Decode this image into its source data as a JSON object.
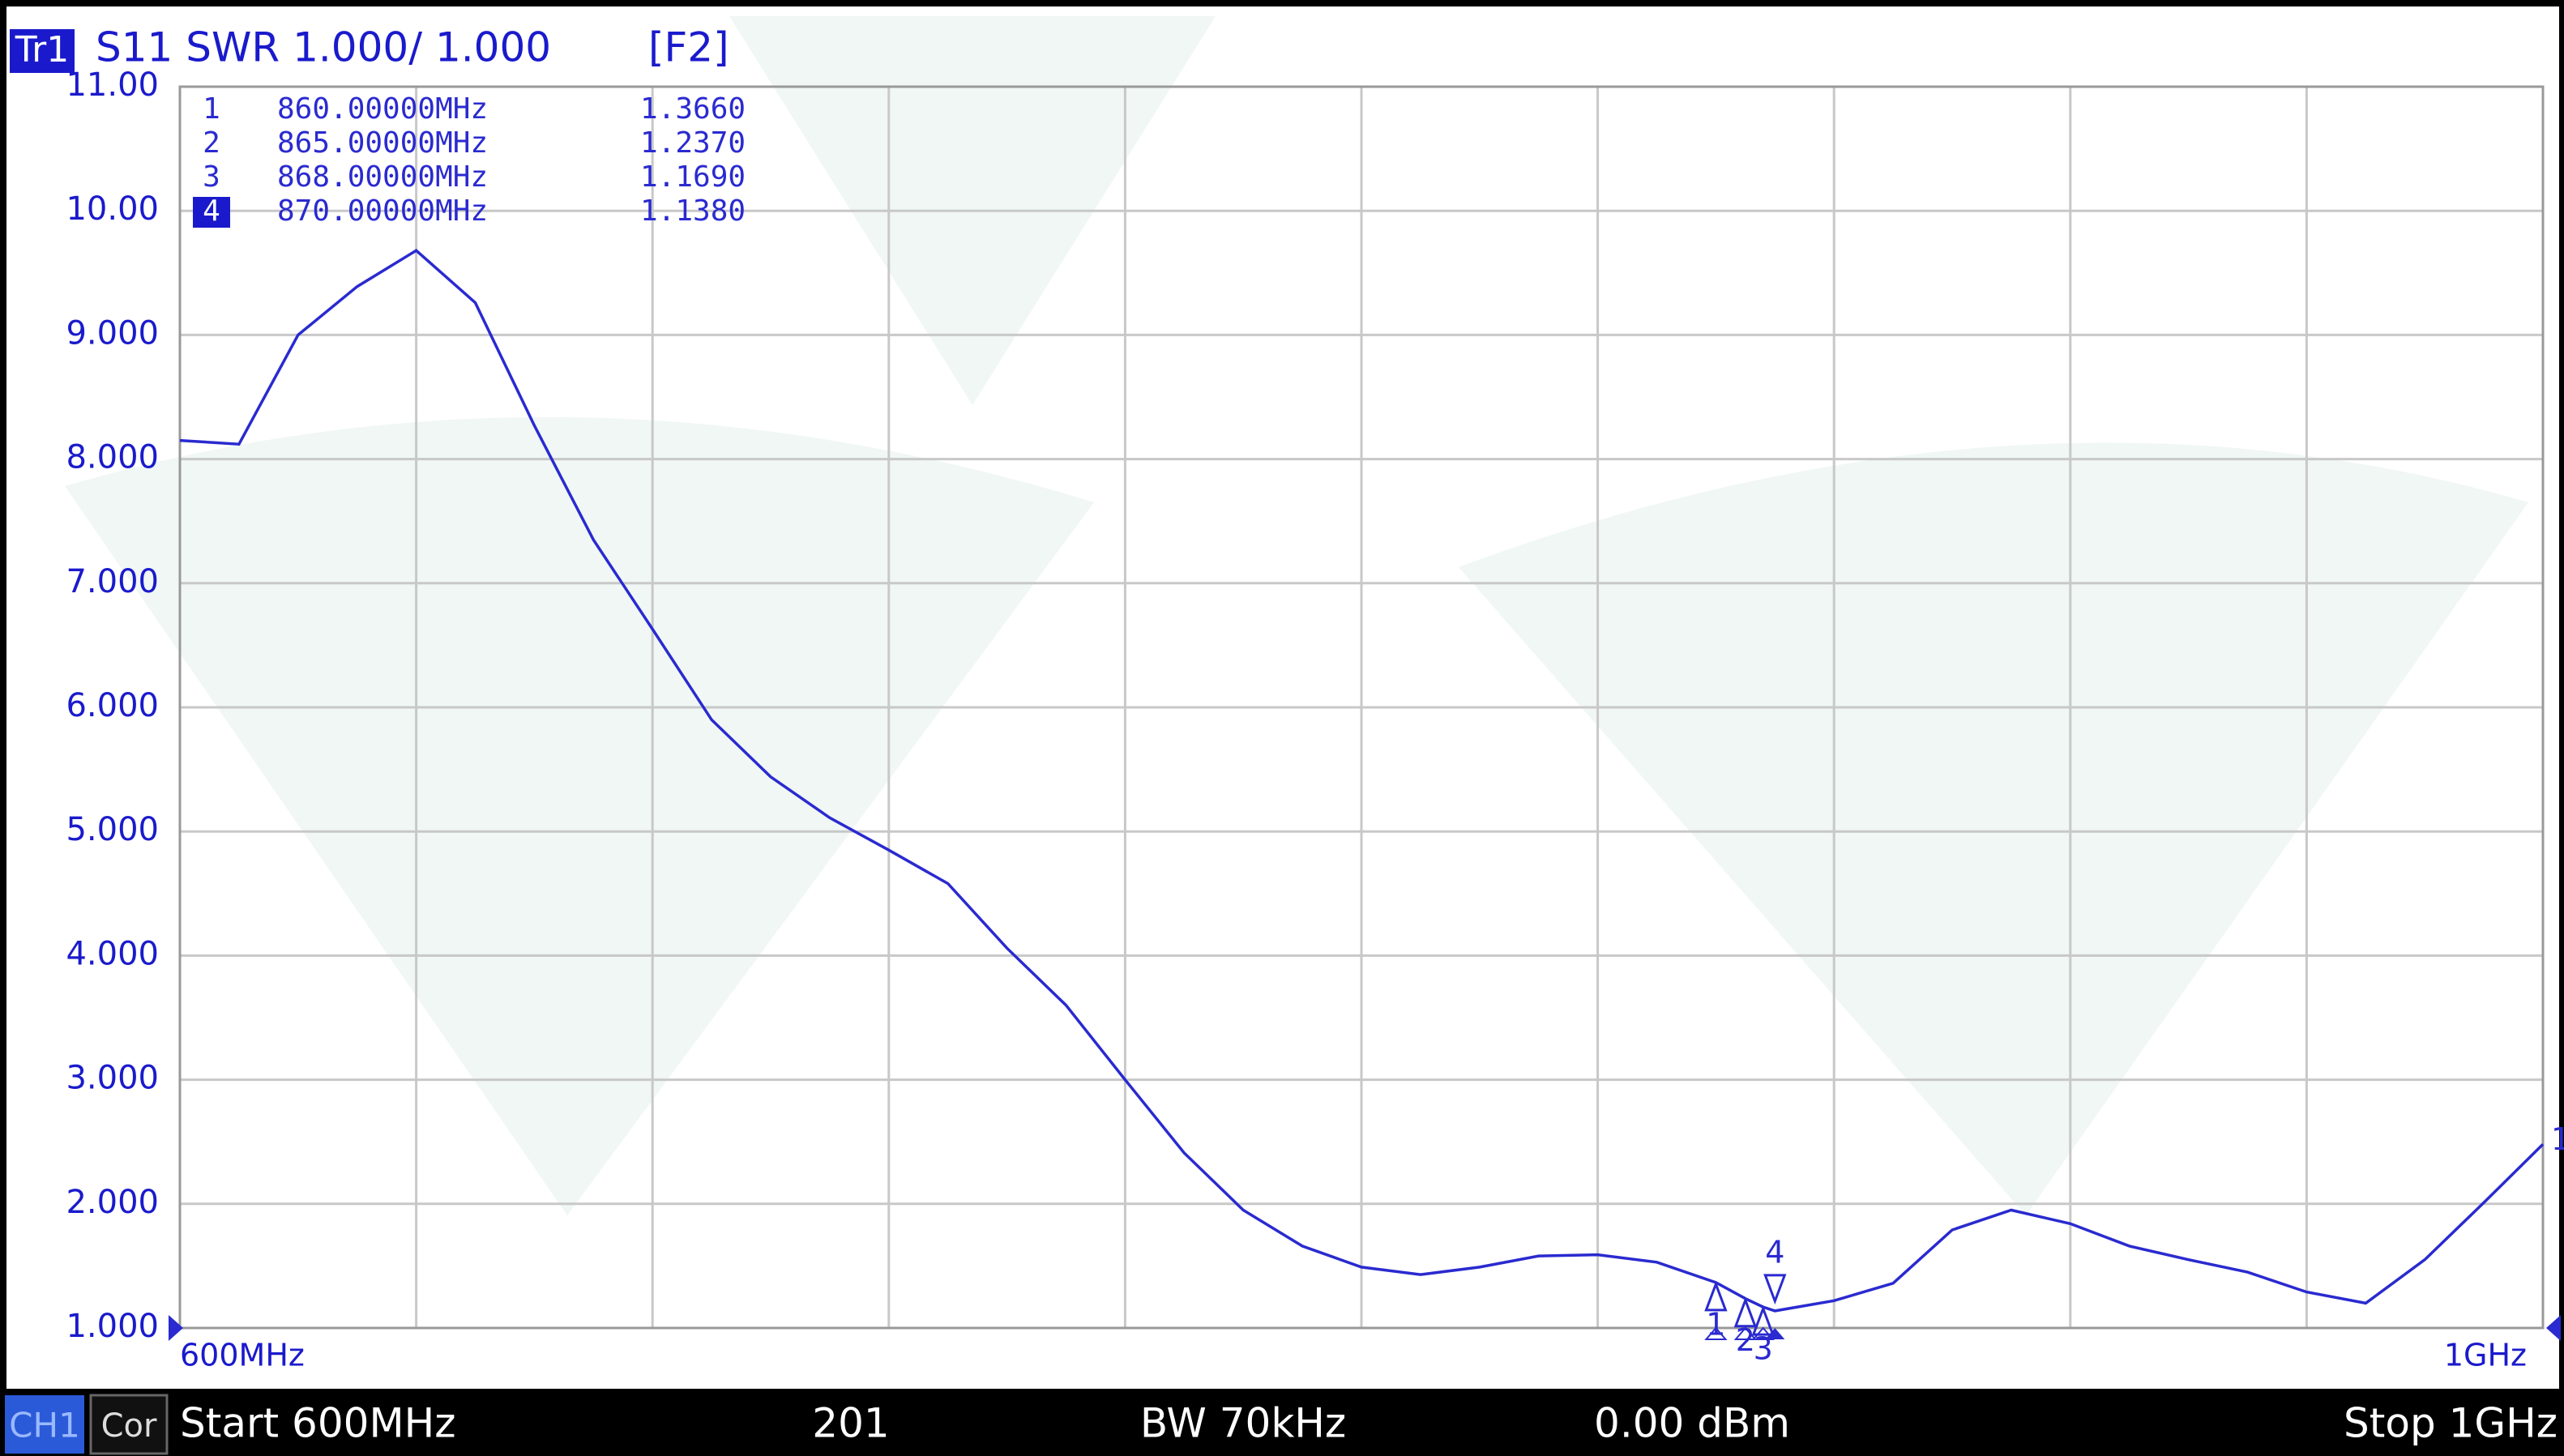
{
  "chart_data": {
    "type": "line",
    "trace": "Tr1",
    "title": "S11 SWR 1.000/ 1.000",
    "function_key": "[F2]",
    "x": [
      600,
      610,
      620,
      630,
      640,
      650,
      660,
      670,
      680,
      690,
      700,
      710,
      720,
      730,
      740,
      750,
      760,
      770,
      780,
      790,
      800,
      810,
      820,
      830,
      840,
      850,
      860,
      865,
      868,
      870,
      880,
      890,
      900,
      910,
      920,
      930,
      940,
      950,
      960,
      970,
      980,
      990,
      1000
    ],
    "series": [
      {
        "name": "S11",
        "color": "#2a2ad0",
        "values": [
          8.15,
          8.12,
          9.0,
          9.39,
          9.68,
          9.26,
          8.27,
          7.35,
          6.63,
          5.9,
          5.44,
          5.11,
          4.85,
          4.58,
          4.06,
          3.6,
          3.0,
          2.41,
          1.95,
          1.66,
          1.49,
          1.43,
          1.49,
          1.58,
          1.59,
          1.53,
          1.366,
          1.237,
          1.169,
          1.138,
          1.22,
          1.36,
          1.79,
          1.95,
          1.84,
          1.66,
          1.55,
          1.45,
          1.29,
          1.2,
          1.55,
          2.01,
          2.48
        ]
      }
    ],
    "xlim": [
      600,
      1000
    ],
    "xticks": [
      {
        "value": 600,
        "label": "600MHz"
      },
      {
        "value": 1000,
        "label": "1GHz"
      }
    ],
    "xgrid": [
      600,
      640,
      680,
      720,
      760,
      800,
      840,
      880,
      920,
      960,
      1000
    ],
    "ylim": [
      1,
      11
    ],
    "yticks": [
      {
        "value": 1,
        "label": "1.000"
      },
      {
        "value": 2,
        "label": "2.000"
      },
      {
        "value": 3,
        "label": "3.000"
      },
      {
        "value": 4,
        "label": "4.000"
      },
      {
        "value": 5,
        "label": "5.000"
      },
      {
        "value": 6,
        "label": "6.000"
      },
      {
        "value": 7,
        "label": "7.000"
      },
      {
        "value": 8,
        "label": "8.000"
      },
      {
        "value": 9,
        "label": "9.000"
      },
      {
        "value": 10,
        "label": "10.00"
      },
      {
        "value": 11,
        "label": "11.00"
      }
    ],
    "grid": true,
    "reference_marker": "1",
    "markers": [
      {
        "label": "1",
        "x": 860,
        "frequency": "860.00000MHz",
        "value": 1.366,
        "value_label": "1.3660",
        "active": false
      },
      {
        "label": "2",
        "x": 865,
        "frequency": "865.00000MHz",
        "value": 1.237,
        "value_label": "1.2370",
        "active": false
      },
      {
        "label": "3",
        "x": 868,
        "frequency": "868.00000MHz",
        "value": 1.169,
        "value_label": "1.1690",
        "active": false
      },
      {
        "label": "4",
        "x": 870,
        "frequency": "870.00000MHz",
        "value": 1.138,
        "value_label": "1.1380",
        "active": true
      }
    ],
    "status_bar": {
      "channel": "CH1",
      "correction": "Cor",
      "start": "Start 600MHz",
      "points": "201",
      "bandwidth": "BW 70kHz",
      "power": "0.00 dBm",
      "stop": "Stop 1GHz"
    }
  }
}
